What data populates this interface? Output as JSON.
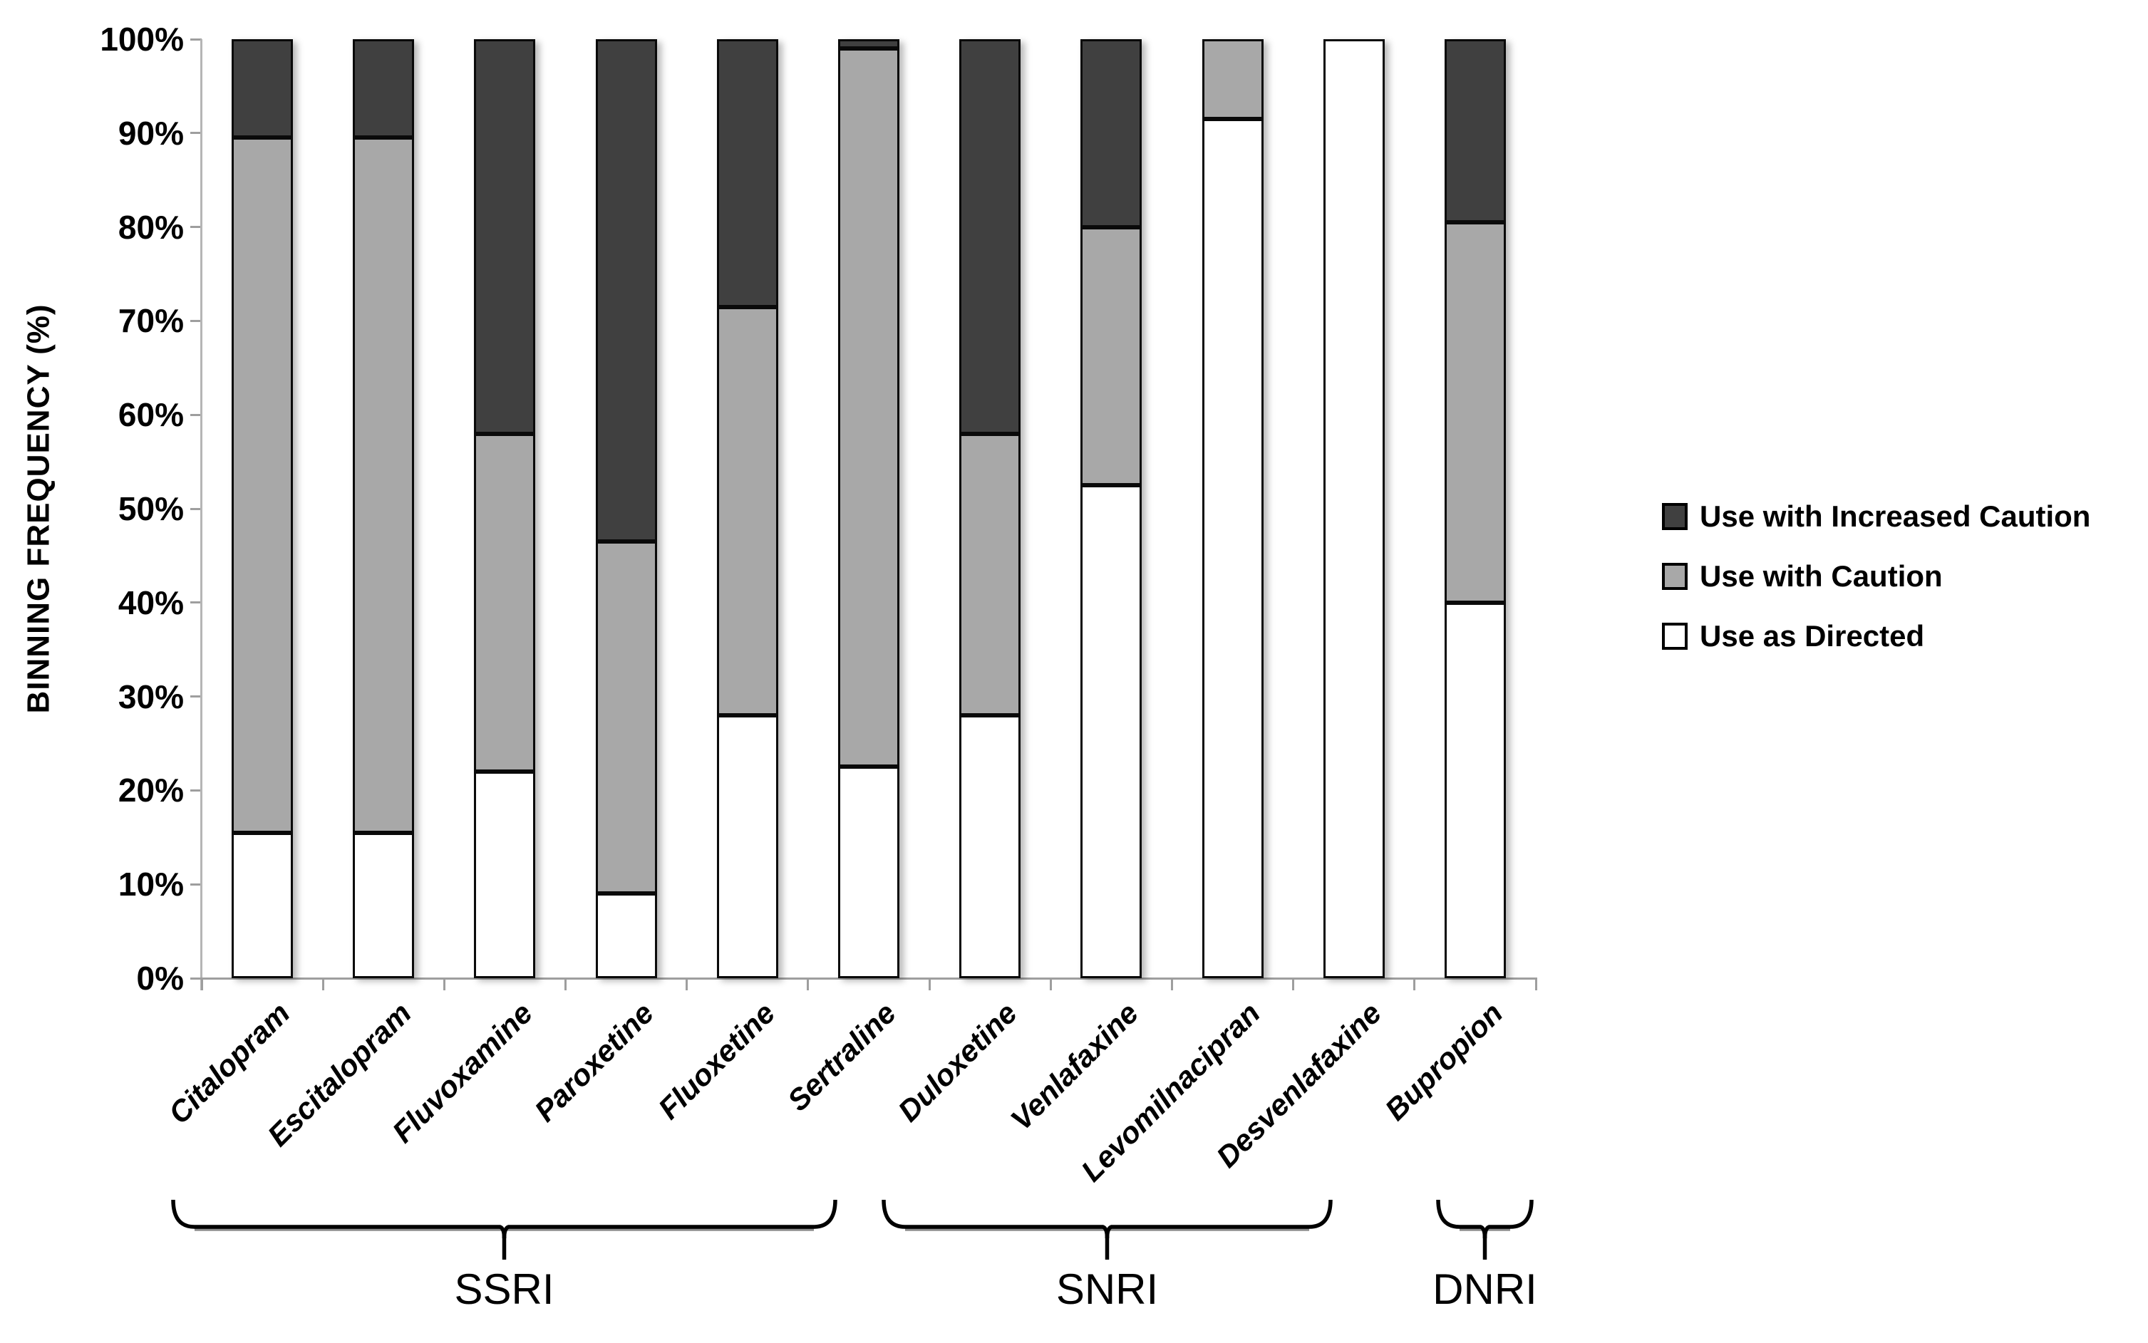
{
  "chart_data": {
    "type": "bar",
    "stacked": true,
    "title": "",
    "xlabel": "",
    "ylabel": "BINNING FREQUENCY (%)",
    "ylim": [
      0,
      100
    ],
    "ytick_step": 10,
    "ytick_labels": [
      "0%",
      "10%",
      "20%",
      "30%",
      "40%",
      "50%",
      "60%",
      "70%",
      "80%",
      "90%",
      "100%"
    ],
    "grid": false,
    "categories": [
      "Citalopram",
      "Escitalopram",
      "Fluvoxamine",
      "Paroxetine",
      "Fluoxetine",
      "Sertraline",
      "Duloxetine",
      "Venlafaxine",
      "Levomilnacipran",
      "Desvenlafaxine",
      "Bupropion"
    ],
    "series": [
      {
        "name": "Use as Directed",
        "color": "#ffffff",
        "values": [
          15.5,
          15.5,
          22,
          9,
          28,
          22.5,
          28,
          52.5,
          91.5,
          100,
          40
        ]
      },
      {
        "name": "Use with Caution",
        "color": "#a8a8a8",
        "values": [
          74,
          74,
          36,
          37.5,
          43.5,
          76.5,
          30,
          27.5,
          8.5,
          0,
          40.5
        ]
      },
      {
        "name": "Use with Increased Caution",
        "color": "#404040",
        "values": [
          10.5,
          10.5,
          42,
          53.5,
          28.5,
          1,
          42,
          20,
          0,
          0,
          19.5
        ]
      }
    ],
    "legend": {
      "position": "right",
      "items": [
        {
          "label": "Use with Increased Caution",
          "color": "#404040"
        },
        {
          "label": "Use with Caution",
          "color": "#a8a8a8"
        },
        {
          "label": "Use as Directed",
          "color": "#ffffff"
        }
      ]
    },
    "groups": [
      {
        "label": "SSRI",
        "from": 0,
        "to": 5
      },
      {
        "label": "SNRI",
        "from": 6,
        "to": 9
      },
      {
        "label": "DNRI",
        "from": 10,
        "to": 10
      }
    ],
    "colors": {
      "axis": "#9e9e9e",
      "bar_border": "#0a0a0a",
      "text": "#000000",
      "background": "#ffffff"
    }
  }
}
